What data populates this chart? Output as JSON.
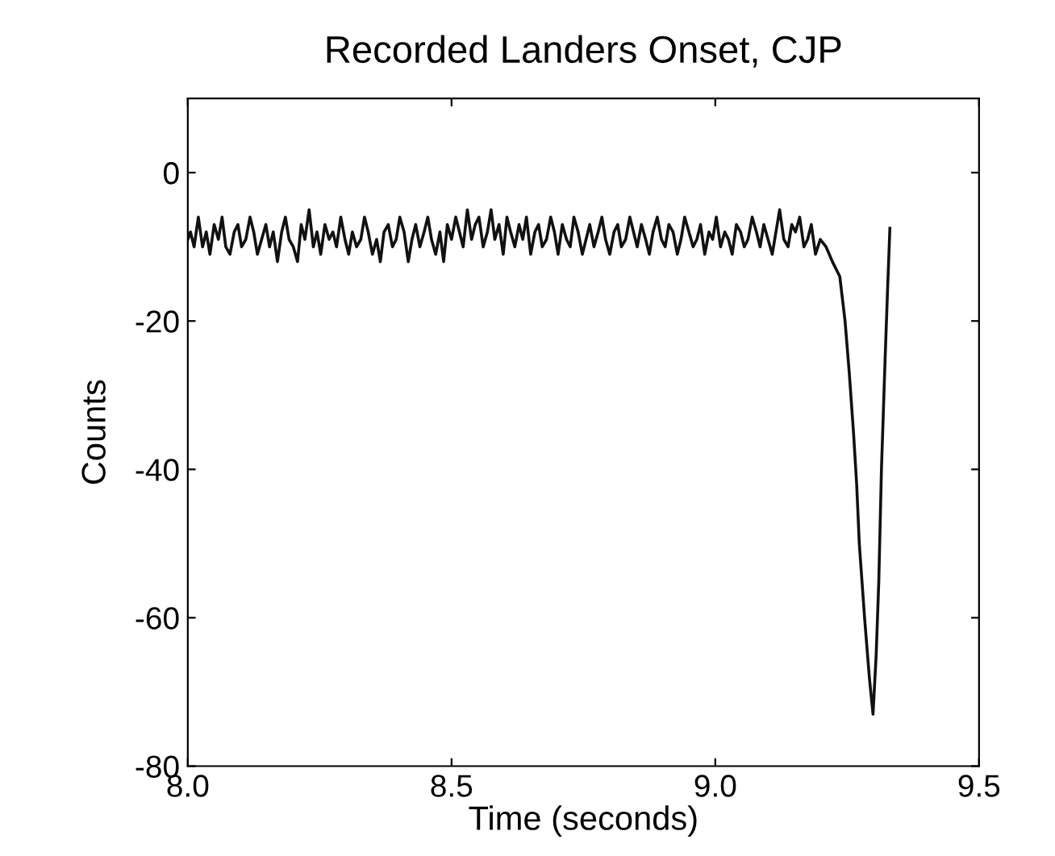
{
  "chart_data": {
    "type": "line",
    "title": "Recorded Landers Onset, CJP",
    "xlabel": "Time (seconds)",
    "ylabel": "Counts",
    "xlim": [
      8.0,
      9.5
    ],
    "ylim": [
      -80,
      10
    ],
    "xticks": [
      {
        "value": 8.0,
        "label": "8.0"
      },
      8.5,
      {
        "value": 9.0,
        "label": "9.0"
      },
      9.5
    ],
    "yticks": [
      -80,
      -60,
      -40,
      -20,
      0
    ],
    "grid": false,
    "legend": false,
    "marker": "none",
    "line_style": "solid",
    "series": [
      {
        "color": "#111111",
        "x": [
          8.0,
          8.005,
          8.012,
          8.02,
          8.028,
          8.035,
          8.042,
          8.05,
          8.058,
          8.065,
          8.072,
          8.08,
          8.088,
          8.095,
          8.102,
          8.11,
          8.118,
          8.125,
          8.132,
          8.14,
          8.148,
          8.155,
          8.162,
          8.17,
          8.178,
          8.185,
          8.192,
          8.2,
          8.208,
          8.215,
          8.222,
          8.23,
          8.238,
          8.245,
          8.252,
          8.26,
          8.268,
          8.275,
          8.282,
          8.29,
          8.298,
          8.305,
          8.312,
          8.32,
          8.328,
          8.335,
          8.342,
          8.35,
          8.358,
          8.365,
          8.372,
          8.38,
          8.388,
          8.395,
          8.402,
          8.41,
          8.418,
          8.425,
          8.432,
          8.44,
          8.448,
          8.455,
          8.462,
          8.47,
          8.478,
          8.485,
          8.492,
          8.5,
          8.508,
          8.515,
          8.522,
          8.53,
          8.538,
          8.545,
          8.552,
          8.56,
          8.568,
          8.575,
          8.582,
          8.59,
          8.598,
          8.605,
          8.612,
          8.62,
          8.628,
          8.635,
          8.642,
          8.65,
          8.658,
          8.665,
          8.672,
          8.68,
          8.688,
          8.695,
          8.702,
          8.71,
          8.718,
          8.725,
          8.732,
          8.74,
          8.748,
          8.755,
          8.762,
          8.77,
          8.778,
          8.785,
          8.792,
          8.8,
          8.808,
          8.815,
          8.822,
          8.83,
          8.838,
          8.845,
          8.852,
          8.86,
          8.868,
          8.875,
          8.882,
          8.89,
          8.898,
          8.905,
          8.912,
          8.92,
          8.928,
          8.935,
          8.942,
          8.95,
          8.958,
          8.965,
          8.972,
          8.98,
          8.988,
          8.995,
          9.002,
          9.01,
          9.018,
          9.025,
          9.032,
          9.04,
          9.048,
          9.055,
          9.062,
          9.07,
          9.078,
          9.085,
          9.092,
          9.1,
          9.108,
          9.115,
          9.122,
          9.13,
          9.138,
          9.145,
          9.152,
          9.16,
          9.168,
          9.175,
          9.182,
          9.19,
          9.199,
          9.21,
          9.222,
          9.236,
          9.246,
          9.254,
          9.262,
          9.268,
          9.273,
          9.283,
          9.292,
          9.299,
          9.305,
          9.31,
          9.315,
          9.322,
          9.327,
          9.331
        ],
        "values": [
          -9,
          -8,
          -10,
          -6,
          -10,
          -8,
          -11,
          -7,
          -9,
          -6,
          -10,
          -11,
          -8,
          -7,
          -10,
          -9,
          -6,
          -8,
          -11,
          -9,
          -7,
          -10,
          -8,
          -12,
          -8,
          -6,
          -9,
          -10,
          -12,
          -7,
          -9,
          -5,
          -10,
          -8,
          -11,
          -7,
          -9,
          -8,
          -10,
          -6,
          -9,
          -11,
          -8,
          -10,
          -9,
          -6,
          -8,
          -11,
          -9,
          -12,
          -8,
          -7,
          -10,
          -9,
          -6,
          -8,
          -12,
          -9,
          -7,
          -10,
          -8,
          -6,
          -9,
          -11,
          -8,
          -12,
          -7,
          -9,
          -6,
          -8,
          -10,
          -5,
          -9,
          -7,
          -6,
          -10,
          -8,
          -5,
          -9,
          -7,
          -11,
          -6,
          -8,
          -10,
          -7,
          -9,
          -6,
          -11,
          -8,
          -7,
          -10,
          -9,
          -6,
          -8,
          -11,
          -7,
          -9,
          -10,
          -6,
          -8,
          -11,
          -9,
          -7,
          -10,
          -8,
          -6,
          -9,
          -11,
          -8,
          -7,
          -10,
          -9,
          -6,
          -8,
          -10,
          -7,
          -9,
          -11,
          -8,
          -6,
          -9,
          -10,
          -7,
          -8,
          -11,
          -9,
          -6,
          -8,
          -10,
          -9,
          -7,
          -11,
          -8,
          -9,
          -6,
          -10,
          -8,
          -9,
          -11,
          -7,
          -8,
          -10,
          -9,
          -6,
          -8,
          -10,
          -7,
          -9,
          -11,
          -8,
          -5,
          -9,
          -10,
          -7,
          -8,
          -6,
          -10,
          -9,
          -7,
          -11,
          -9,
          -10,
          -12,
          -14,
          -20,
          -27,
          -35,
          -42,
          -50,
          -60,
          -68,
          -73,
          -65,
          -55,
          -40,
          -25,
          -15,
          -7.5
        ]
      }
    ]
  }
}
